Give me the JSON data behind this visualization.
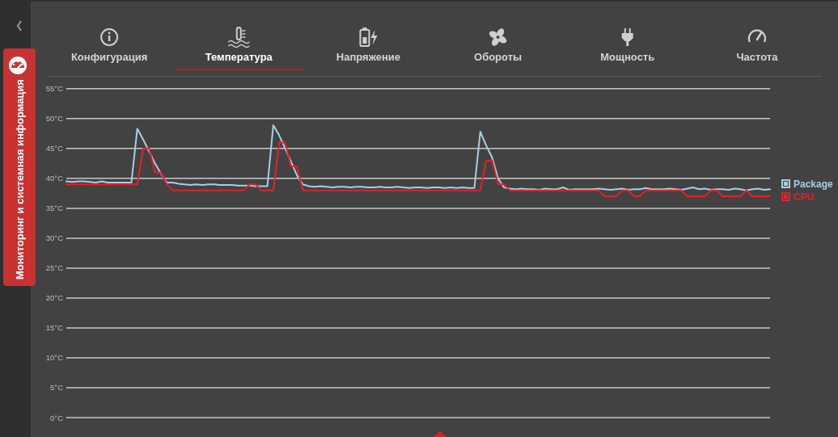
{
  "chart_data": {
    "type": "line",
    "annotations": [
      "Конфигурация",
      "Температура",
      "Напряжение",
      "Обороты",
      "Мощность",
      "Частота",
      "Мониторинг и системная информация"
    ],
    "categories": [
      null,
      null,
      null,
      null,
      null,
      null,
      null,
      null,
      null,
      null,
      null,
      null,
      null,
      null,
      null,
      null,
      null,
      null,
      null,
      null,
      null,
      null,
      null,
      null,
      null,
      null,
      null,
      null,
      null,
      null,
      null,
      null,
      null,
      null,
      null,
      null,
      null,
      null,
      null,
      null,
      null,
      null,
      null,
      null,
      null,
      null,
      null,
      null,
      null,
      null,
      null,
      null,
      null,
      null,
      null,
      null,
      null,
      null,
      null,
      null,
      null,
      null,
      null,
      null,
      null,
      null,
      null,
      null,
      null,
      null,
      null,
      null,
      null,
      null,
      null,
      null,
      null,
      null,
      null,
      null,
      null,
      null,
      null,
      null,
      null,
      null,
      null,
      null,
      null,
      null,
      null,
      null,
      null,
      null,
      null,
      null,
      null,
      null,
      null,
      null,
      null,
      null,
      null,
      null,
      null,
      null,
      null,
      null,
      null,
      null,
      null,
      null,
      null,
      null,
      null,
      null,
      null,
      null,
      null,
      null
    ],
    "series": [
      {
        "name": "Package",
        "color": "#a6d0e4",
        "values": [
          39.5,
          39.4,
          39.5,
          39.5,
          39.4,
          39.3,
          39.5,
          39.3,
          39.3,
          39.3,
          39.3,
          39.3,
          48.3,
          46.5,
          44.5,
          42.5,
          40.8,
          39.3,
          39.3,
          39.1,
          39.0,
          38.9,
          39.0,
          38.9,
          39.0,
          39.0,
          38.9,
          38.9,
          38.9,
          38.8,
          38.8,
          38.8,
          38.7,
          38.7,
          38.7,
          48.9,
          47.2,
          45.0,
          42.8,
          40.5,
          39.0,
          38.7,
          38.6,
          38.7,
          38.6,
          38.5,
          38.6,
          38.6,
          38.5,
          38.6,
          38.6,
          38.5,
          38.5,
          38.6,
          38.5,
          38.5,
          38.6,
          38.5,
          38.4,
          38.5,
          38.5,
          38.4,
          38.5,
          38.5,
          38.4,
          38.5,
          38.4,
          38.5,
          38.4,
          38.4,
          47.8,
          45.5,
          43.5,
          40.0,
          38.5,
          38.3,
          38.2,
          38.3,
          38.2,
          38.2,
          38.1,
          38.3,
          38.2,
          38.2,
          38.5,
          38.1,
          38.2,
          38.2,
          38.2,
          38.2,
          38.3,
          38.2,
          38.1,
          38.2,
          38.3,
          38.1,
          38.2,
          38.2,
          38.4,
          38.2,
          38.2,
          38.2,
          38.3,
          38.2,
          38.1,
          38.3,
          38.5,
          38.2,
          38.3,
          38.1,
          38.2,
          38.2,
          38.1,
          38.3,
          38.2,
          38.0,
          38.2,
          38.3,
          38.1,
          38.2
        ]
      },
      {
        "name": "CPU",
        "color": "#e5202a",
        "values": [
          39,
          39,
          39,
          39,
          39,
          39,
          39,
          39,
          39,
          39,
          39,
          39,
          39,
          45,
          45,
          41,
          41,
          39,
          38,
          38,
          38,
          38,
          38,
          38,
          38,
          38,
          38,
          38,
          38,
          38,
          38,
          39,
          39,
          38,
          38,
          38,
          46,
          46,
          42,
          42,
          38,
          38,
          38,
          38,
          38,
          38,
          38,
          38,
          38,
          38,
          38,
          38,
          38,
          38,
          38,
          38,
          38,
          38,
          38,
          38,
          38,
          38,
          38,
          38,
          38,
          38,
          38,
          38,
          38,
          38,
          38,
          43,
          43,
          39,
          39,
          38,
          38,
          38,
          38,
          38,
          38,
          38,
          38,
          38,
          38,
          38,
          38,
          38,
          38,
          38,
          38,
          37,
          37,
          37,
          38,
          38,
          37,
          37,
          38,
          38,
          38,
          38,
          38,
          38,
          38,
          37,
          37,
          37,
          37,
          38,
          38,
          37,
          37,
          37,
          37,
          38,
          37,
          37,
          37,
          37
        ]
      }
    ],
    "ylim": [
      0,
      57
    ],
    "yticks": [
      {
        "value": 0,
        "label": "0°C"
      },
      {
        "value": 5,
        "label": "5°C"
      },
      {
        "value": 10,
        "label": "10°C"
      },
      {
        "value": 15,
        "label": "15°C"
      },
      {
        "value": 20,
        "label": "20°C"
      },
      {
        "value": 25,
        "label": "25°C"
      },
      {
        "value": 30,
        "label": "30°C"
      },
      {
        "value": 35,
        "label": "35°C"
      },
      {
        "value": 40,
        "label": "40°C"
      },
      {
        "value": 45,
        "label": "45°C"
      },
      {
        "value": 50,
        "label": "50°C"
      },
      {
        "value": 55,
        "label": "55°C"
      }
    ],
    "grid": "y",
    "legend": "right"
  }
}
